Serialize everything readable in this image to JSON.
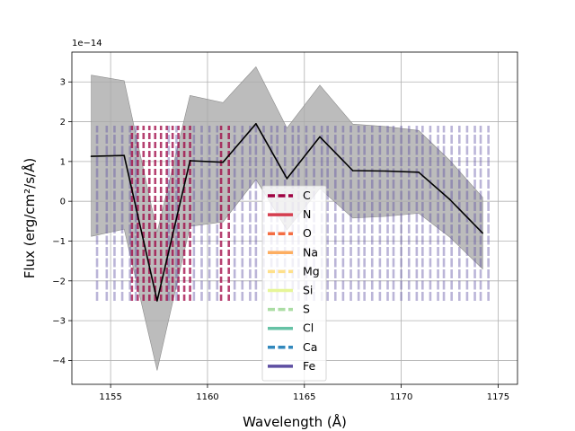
{
  "chart_data": {
    "type": "line",
    "title": "",
    "xlabel": "Wavelength (Å)",
    "ylabel": "Flux (erg/cm²/s/Å)",
    "y_scale_label": "1e−14",
    "xlim": [
      1153.0,
      1176.0
    ],
    "ylim": [
      -4.6,
      3.75
    ],
    "grid": true,
    "legend_position": "lower-center",
    "x_ticks": [
      1155,
      1160,
      1165,
      1170,
      1175
    ],
    "x_tick_labels": [
      "1155",
      "1160",
      "1165",
      "1170",
      "1175"
    ],
    "y_ticks": [
      3,
      2,
      1,
      0,
      -1,
      -2,
      -3,
      -4
    ],
    "y_tick_labels": [
      "3",
      "2",
      "1",
      "0",
      "−1",
      "−2",
      "−3",
      "−4"
    ],
    "series": [
      {
        "kind": "line",
        "color": "#000000",
        "x": [
          1154.0,
          1155.7,
          1157.4,
          1159.1,
          1160.8,
          1162.5,
          1164.1,
          1165.8,
          1167.5,
          1169.2,
          1170.9,
          1172.5,
          1174.2
        ],
        "y": [
          1.13,
          1.15,
          -2.5,
          1.02,
          0.98,
          1.95,
          0.57,
          1.62,
          0.77,
          0.76,
          0.73,
          0.05,
          -0.8
        ]
      },
      {
        "kind": "band",
        "color": "#a9a9a9",
        "x": [
          1154.0,
          1155.7,
          1157.4,
          1159.1,
          1160.8,
          1162.5,
          1164.1,
          1165.8,
          1167.5,
          1169.2,
          1170.9,
          1172.5,
          1174.2
        ],
        "upper": [
          3.17,
          3.03,
          -0.78,
          2.66,
          2.48,
          3.38,
          1.84,
          2.92,
          1.94,
          1.88,
          1.78,
          1.03,
          0.1
        ],
        "lower": [
          -0.88,
          -0.7,
          -4.25,
          -0.63,
          -0.52,
          0.55,
          -0.72,
          0.32,
          -0.42,
          -0.38,
          -0.3,
          -0.9,
          -1.7
        ]
      }
    ],
    "legend": [
      {
        "label": "C",
        "color": "#9e0142",
        "style": "dashed"
      },
      {
        "label": "N",
        "color": "#d53e4f",
        "style": "solid"
      },
      {
        "label": "O",
        "color": "#f46d43",
        "style": "dashed"
      },
      {
        "label": "Na",
        "color": "#fdae61",
        "style": "solid"
      },
      {
        "label": "Mg",
        "color": "#fee08b",
        "style": "dashed"
      },
      {
        "label": "Si",
        "color": "#e6f598",
        "style": "solid"
      },
      {
        "label": "S",
        "color": "#abdda4",
        "style": "dashed"
      },
      {
        "label": "Cl",
        "color": "#66c2a5",
        "style": "solid"
      },
      {
        "label": "Ca",
        "color": "#3288bd",
        "style": "dashed"
      },
      {
        "label": "Fe",
        "color": "#5e4fa2",
        "style": "solid"
      }
    ],
    "line_markers": {
      "y_range": [
        -2.5,
        1.9
      ],
      "groups": [
        {
          "element": "C",
          "color": "#9e0142",
          "dashed": true,
          "x": [
            1156.1,
            1156.4,
            1156.7,
            1157.0,
            1157.3,
            1157.6,
            1157.9,
            1158.2,
            1158.5,
            1158.8,
            1159.1,
            1160.7,
            1161.1
          ]
        },
        {
          "element": "Fe",
          "color": "#5e4fa2",
          "dashed": false,
          "x": [
            1154.3,
            1154.8,
            1155.2,
            1155.6,
            1156.0,
            1156.3,
            1158.0,
            1158.4,
            1159.3,
            1159.7,
            1160.1,
            1160.5,
            1161.4,
            1161.8,
            1162.2,
            1162.5,
            1162.9,
            1163.3,
            1163.6,
            1164.0,
            1164.4,
            1164.7,
            1165.1,
            1165.5,
            1165.9,
            1166.2,
            1166.6,
            1167.0,
            1167.4,
            1167.8,
            1168.1,
            1168.5,
            1168.9,
            1169.3,
            1169.6,
            1170.0,
            1170.4,
            1170.8,
            1171.1,
            1171.5,
            1171.9,
            1172.2,
            1172.6,
            1173.0,
            1173.4,
            1173.8,
            1174.1,
            1174.5
          ]
        }
      ]
    }
  }
}
